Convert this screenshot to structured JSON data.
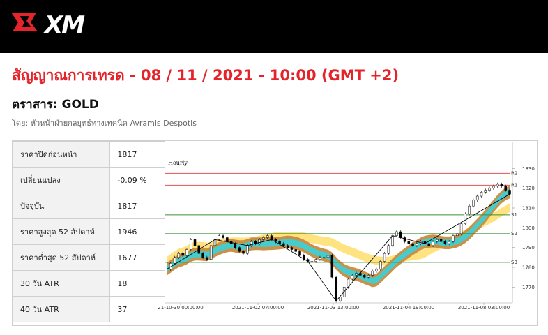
{
  "brand": {
    "logo_text": "XM"
  },
  "header": {
    "title": "สัญญาณการเทรด - 08 / 11 / 2021 - 10:00 (GMT +2)",
    "instrument": "ตราสาร: GOLD",
    "byline": "โดย: หัวหน้าฝ่ายกลยุทธ์ทางเทคนิค Avramis Despotis"
  },
  "stats": [
    {
      "label": "ราคาปิดก่อนหน้า",
      "value": "1817"
    },
    {
      "label": "เปลี่ยนแปลง",
      "value": "-0.09 %"
    },
    {
      "label": "ปัจจุบัน",
      "value": "1817"
    },
    {
      "label": "ราคาสูงสุด 52 สัปดาห์",
      "value": "1946"
    },
    {
      "label": "ราคาต่ำสุด 52 สัปดาห์",
      "value": "1677"
    },
    {
      "label": "30 วัน ATR",
      "value": "18"
    },
    {
      "label": "40 วัน ATR",
      "value": "37"
    }
  ],
  "chart_data": {
    "type": "candlestick",
    "timeframe": "Hourly",
    "ylim": [
      1762,
      1834
    ],
    "y_ticks": [
      "1830",
      "1820",
      "1810",
      "1800",
      "1790",
      "1780",
      "1770"
    ],
    "x_ticks": [
      "21-10-30 00:00:00",
      "2021-11-02 07:00:00",
      "2021-11-03 13:00:00",
      "2021-11-04 19:00:00",
      "2021-11-08 03:00:00"
    ],
    "levels": [
      {
        "name": "R2",
        "value": 1827.5,
        "color": "#e05555"
      },
      {
        "name": "R1",
        "value": 1821.5,
        "color": "#e05555"
      },
      {
        "name": "S1",
        "value": 1806.5,
        "color": "#3a8f3a"
      },
      {
        "name": "S2",
        "value": 1797.0,
        "color": "#3a8f3a"
      },
      {
        "name": "S3",
        "value": 1782.5,
        "color": "#3a8f3a"
      }
    ],
    "price_path": [
      1779,
      1782,
      1785,
      1787,
      1786,
      1789,
      1794,
      1791,
      1787,
      1785,
      1784,
      1791,
      1794,
      1796,
      1795,
      1793,
      1792,
      1790,
      1788,
      1787,
      1791,
      1793,
      1792,
      1794,
      1795,
      1796,
      1794,
      1793,
      1792,
      1791,
      1790,
      1789,
      1788,
      1786,
      1784,
      1783,
      1783,
      1784,
      1785,
      1785,
      1786,
      1775,
      1763,
      1765,
      1770,
      1774,
      1776,
      1777,
      1776,
      1775,
      1776,
      1778,
      1779,
      1783,
      1787,
      1791,
      1796,
      1798,
      1795,
      1793,
      1792,
      1791,
      1792,
      1793,
      1792,
      1791,
      1793,
      1794,
      1793,
      1792,
      1793,
      1796,
      1797,
      1802,
      1807,
      1811,
      1814,
      1816,
      1818,
      1819,
      1820,
      1821,
      1822,
      1821,
      1819,
      1817
    ]
  },
  "colors": {
    "brand_red": "#e3242b",
    "ribbon_teal": "#3fd0d6",
    "ribbon_bronze": "#c98a3e",
    "ribbon_yellow": "#ffe27a"
  }
}
